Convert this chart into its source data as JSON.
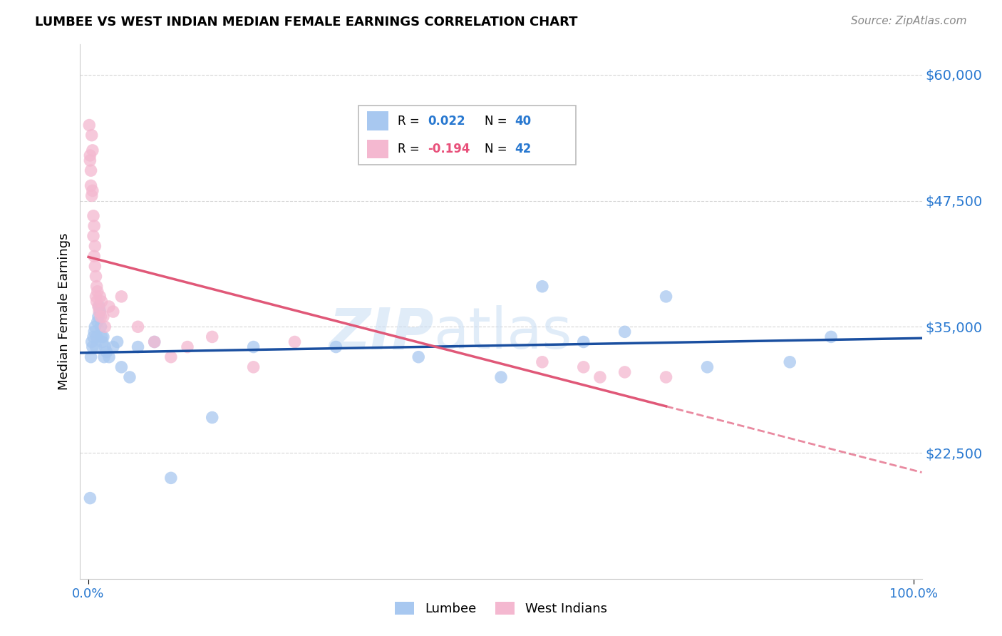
{
  "title": "LUMBEE VS WEST INDIAN MEDIAN FEMALE EARNINGS CORRELATION CHART",
  "source": "Source: ZipAtlas.com",
  "ylabel": "Median Female Earnings",
  "ymin": 10000,
  "ymax": 63000,
  "xmin": -0.01,
  "xmax": 1.01,
  "watermark_line1": "ZIP",
  "watermark_line2": "atlas",
  "lumbee_color": "#a8c8f0",
  "west_indian_color": "#f4b8d0",
  "lumbee_line_color": "#1a4fa0",
  "west_indian_line_color": "#e05878",
  "grid_color": "#cccccc",
  "ytick_vals": [
    22500,
    35000,
    47500,
    60000
  ],
  "ytick_labels": [
    "$22,500",
    "$35,000",
    "$47,500",
    "$60,000"
  ],
  "lumbee_R": "0.022",
  "lumbee_N": "40",
  "west_indian_R": "-0.194",
  "west_indian_N": "42",
  "R_color_blue": "#2878d0",
  "R_color_pink": "#e8507a",
  "N_color": "#2878d0",
  "lumbee_x": [
    0.002,
    0.003,
    0.004,
    0.005,
    0.006,
    0.007,
    0.008,
    0.009,
    0.01,
    0.011,
    0.012,
    0.013,
    0.014,
    0.015,
    0.016,
    0.017,
    0.018,
    0.019,
    0.02,
    0.022,
    0.025,
    0.03,
    0.035,
    0.04,
    0.05,
    0.06,
    0.08,
    0.1,
    0.15,
    0.2,
    0.3,
    0.4,
    0.5,
    0.55,
    0.6,
    0.65,
    0.7,
    0.75,
    0.85,
    0.9
  ],
  "lumbee_y": [
    18000,
    32000,
    33500,
    33000,
    34000,
    34500,
    35000,
    33000,
    34000,
    35500,
    36000,
    37000,
    36500,
    35000,
    34000,
    33500,
    34000,
    32000,
    33000,
    32500,
    32000,
    33000,
    33500,
    31000,
    30000,
    33000,
    33500,
    20000,
    26000,
    33000,
    33000,
    32000,
    30000,
    39000,
    33500,
    34500,
    38000,
    31000,
    31500,
    34000
  ],
  "west_indian_x": [
    0.001,
    0.002,
    0.002,
    0.003,
    0.003,
    0.004,
    0.004,
    0.005,
    0.005,
    0.006,
    0.006,
    0.007,
    0.007,
    0.008,
    0.008,
    0.009,
    0.009,
    0.01,
    0.01,
    0.011,
    0.012,
    0.013,
    0.014,
    0.015,
    0.016,
    0.018,
    0.02,
    0.025,
    0.03,
    0.04,
    0.06,
    0.08,
    0.1,
    0.12,
    0.15,
    0.2,
    0.25,
    0.55,
    0.6,
    0.62,
    0.65,
    0.7
  ],
  "west_indian_y": [
    55000,
    52000,
    51500,
    50500,
    49000,
    48000,
    54000,
    52500,
    48500,
    46000,
    44000,
    42000,
    45000,
    41000,
    43000,
    40000,
    38000,
    39000,
    37500,
    38500,
    37000,
    36500,
    38000,
    36000,
    37500,
    36000,
    35000,
    37000,
    36500,
    38000,
    35000,
    33500,
    32000,
    33000,
    34000,
    31000,
    33500,
    31500,
    31000,
    30000,
    30500,
    30000
  ]
}
